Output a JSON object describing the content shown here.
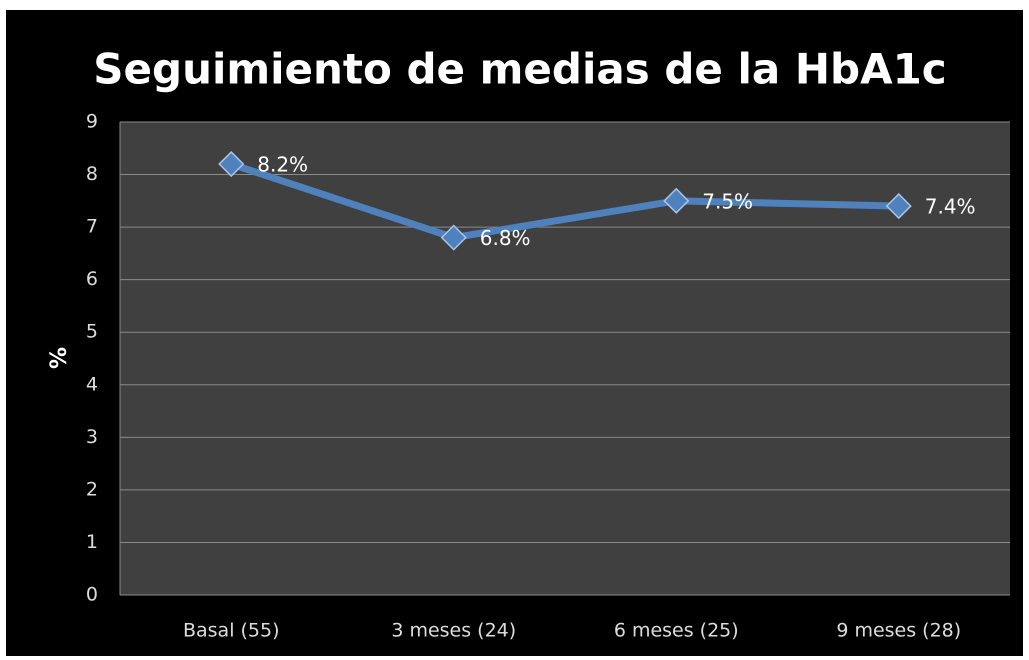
{
  "chart_data": {
    "type": "line",
    "title": "Seguimiento de medias  de la HbA1c",
    "y_label": "%",
    "categories": [
      "Basal (55)",
      "3 meses (24)",
      "6 meses (25)",
      "9 meses (28)"
    ],
    "values": [
      8.2,
      6.8,
      7.5,
      7.4
    ],
    "value_labels": [
      "8.2%",
      "6.8%",
      "7.5%",
      "7.4%"
    ],
    "color": "#4f81bd",
    "ylim": [
      0,
      9
    ],
    "yticks": [
      0,
      1,
      2,
      3,
      4,
      5,
      6,
      7,
      8,
      9
    ],
    "grid": true
  }
}
